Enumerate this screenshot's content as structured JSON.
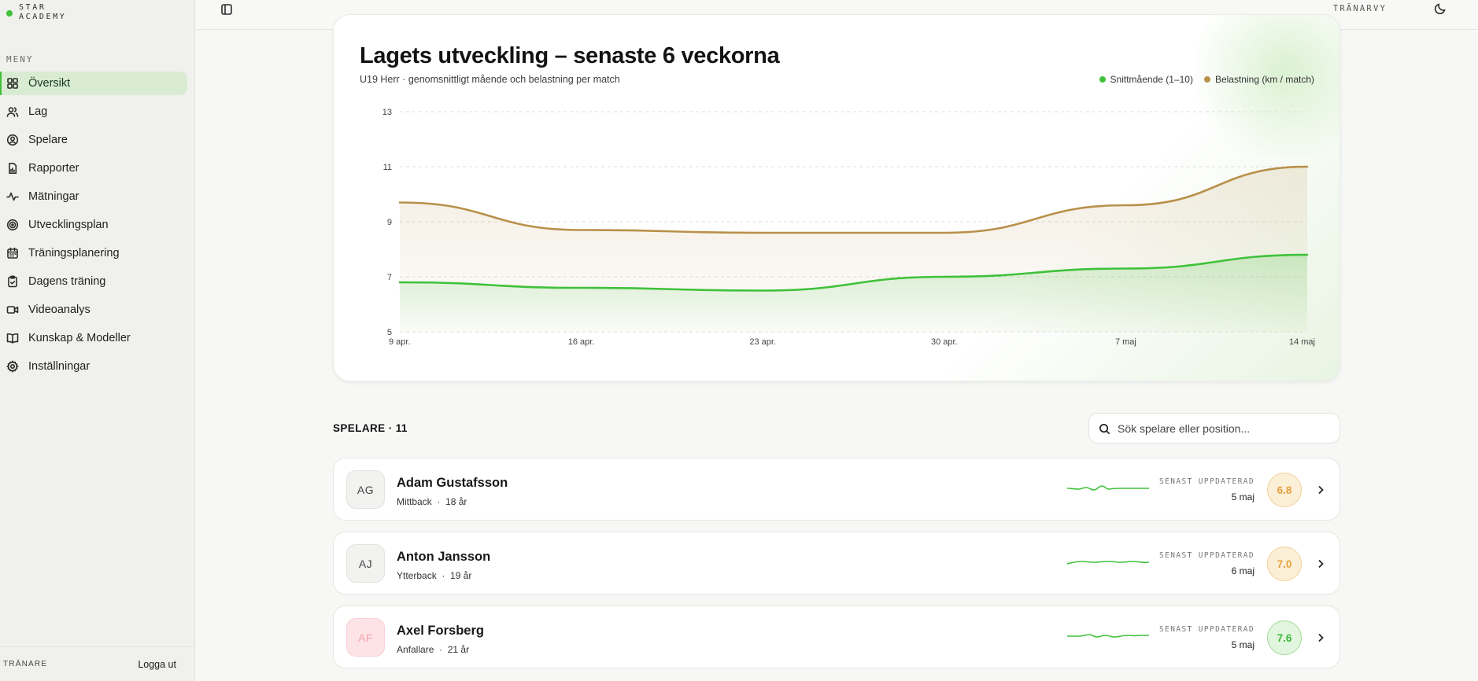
{
  "brand": {
    "line1": "STAR",
    "line2": "ACADEMY"
  },
  "sidebar": {
    "menu_label": "MENY",
    "items": [
      {
        "label": "Översikt",
        "icon": "grid-icon",
        "active": true
      },
      {
        "label": "Lag",
        "icon": "users-icon"
      },
      {
        "label": "Spelare",
        "icon": "user-circle-icon"
      },
      {
        "label": "Rapporter",
        "icon": "report-icon"
      },
      {
        "label": "Mätningar",
        "icon": "activity-icon"
      },
      {
        "label": "Utvecklingsplan",
        "icon": "target-icon"
      },
      {
        "label": "Träningsplanering",
        "icon": "calendar-icon"
      },
      {
        "label": "Dagens träning",
        "icon": "clipboard-check-icon"
      },
      {
        "label": "Videoanalys",
        "icon": "video-icon"
      },
      {
        "label": "Kunskap & Modeller",
        "icon": "book-icon"
      },
      {
        "label": "Inställningar",
        "icon": "gear-icon"
      }
    ],
    "footer": {
      "role": "TRÄNARE",
      "logout": "Logga ut"
    }
  },
  "topbar": {
    "view_label": "TRÄNARVY"
  },
  "chart_card": {
    "title": "Lagets utveckling – senaste 6 veckorna",
    "subtitle": "U19 Herr · genomsnittligt mående och belastning per match"
  },
  "chart_data": {
    "type": "area",
    "x": [
      "9 apr.",
      "16 apr.",
      "23 apr.",
      "30 apr.",
      "7 maj",
      "14 maj"
    ],
    "ylim": [
      5,
      13
    ],
    "yticks": [
      5,
      7,
      9,
      11,
      13
    ],
    "grid": true,
    "legend_position": "top-right",
    "series": [
      {
        "name": "Snittmående (1–10)",
        "color": "#3fc13a",
        "values": [
          6.8,
          6.6,
          6.5,
          7.0,
          7.3,
          7.8
        ]
      },
      {
        "name": "Belastning (km / match)",
        "color": "#b8904a",
        "values": [
          9.7,
          8.7,
          8.6,
          8.6,
          9.6,
          11.0
        ]
      }
    ]
  },
  "players": {
    "heading": "SPELARE · 11",
    "search_placeholder": "Sök spelare eller position...",
    "updated_label": "SENAST UPPDATERAD",
    "rows": [
      {
        "initials": "AG",
        "name": "Adam Gustafsson",
        "position": "Mittback",
        "age": "18 år",
        "updated": "5 maj",
        "score": "6.8",
        "score_tone": "orange",
        "avatar_tone": "neutral"
      },
      {
        "initials": "AJ",
        "name": "Anton Jansson",
        "position": "Ytterback",
        "age": "19 år",
        "updated": "6 maj",
        "score": "7.0",
        "score_tone": "orange",
        "avatar_tone": "neutral"
      },
      {
        "initials": "AF",
        "name": "Axel Forsberg",
        "position": "Anfallare",
        "age": "21 år",
        "updated": "5 maj",
        "score": "7.6",
        "score_tone": "green",
        "avatar_tone": "pink"
      }
    ]
  }
}
